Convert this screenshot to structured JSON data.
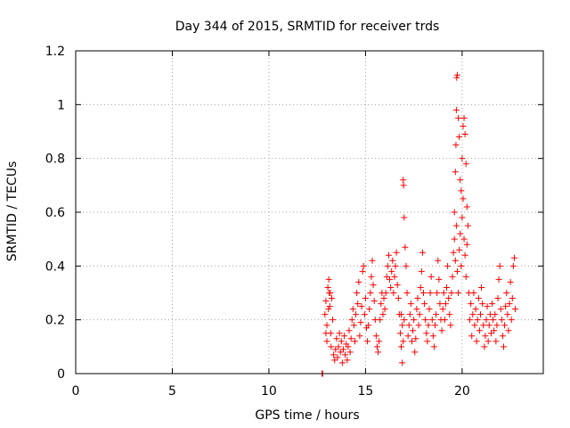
{
  "chart_data": {
    "type": "scatter",
    "title": "Day 344 of 2015, SRMTID for receiver trds",
    "xlabel": "GPS time / hours",
    "ylabel": "SRMTID / TECUs",
    "xlim": [
      0,
      24.2
    ],
    "ylim": [
      0,
      1.2
    ],
    "x_ticks": [
      0,
      5,
      10,
      15,
      20
    ],
    "x_tick_labels": [
      "0",
      "5",
      "10",
      "15",
      "20"
    ],
    "y_ticks": [
      0,
      0.2,
      0.4,
      0.6,
      0.8,
      1.0,
      1.2
    ],
    "y_tick_labels": [
      "0",
      "0.2",
      "0.4",
      "0.6",
      "0.8",
      "1",
      "1.2"
    ],
    "grid": true,
    "marker": "plus",
    "color": "#ff0000",
    "series": [
      {
        "name": "SRMTID",
        "points": [
          [
            12.75,
            0.0
          ],
          [
            12.75,
            0.0
          ],
          [
            12.78,
            0.0
          ],
          [
            12.9,
            0.22
          ],
          [
            12.95,
            0.27
          ],
          [
            13.0,
            0.18
          ],
          [
            13.05,
            0.32
          ],
          [
            13.1,
            0.35
          ],
          [
            13.12,
            0.3
          ],
          [
            13.15,
            0.25
          ],
          [
            13.2,
            0.15
          ],
          [
            13.22,
            0.1
          ],
          [
            13.25,
            0.28
          ],
          [
            13.3,
            0.2
          ],
          [
            12.95,
            0.15
          ],
          [
            13.0,
            0.12
          ],
          [
            13.08,
            0.24
          ],
          [
            13.18,
            0.3
          ],
          [
            13.35,
            0.07
          ],
          [
            13.4,
            0.05
          ],
          [
            13.45,
            0.09
          ],
          [
            13.5,
            0.13
          ],
          [
            13.55,
            0.06
          ],
          [
            13.6,
            0.1
          ],
          [
            13.65,
            0.15
          ],
          [
            13.7,
            0.08
          ],
          [
            13.75,
            0.12
          ],
          [
            13.8,
            0.04
          ],
          [
            13.85,
            0.09
          ],
          [
            13.9,
            0.14
          ],
          [
            13.95,
            0.07
          ],
          [
            14.0,
            0.11
          ],
          [
            14.05,
            0.05
          ],
          [
            14.1,
            0.1
          ],
          [
            14.15,
            0.16
          ],
          [
            14.2,
            0.08
          ],
          [
            14.25,
            0.13
          ],
          [
            14.3,
            0.2
          ],
          [
            14.35,
            0.24
          ],
          [
            14.4,
            0.18
          ],
          [
            14.45,
            0.12
          ],
          [
            14.5,
            0.22
          ],
          [
            14.55,
            0.3
          ],
          [
            14.6,
            0.26
          ],
          [
            14.65,
            0.34
          ],
          [
            14.7,
            0.14
          ],
          [
            14.75,
            0.19
          ],
          [
            14.8,
            0.25
          ],
          [
            14.85,
            0.38
          ],
          [
            14.9,
            0.4
          ],
          [
            14.95,
            0.22
          ],
          [
            15.0,
            0.28
          ],
          [
            15.05,
            0.17
          ],
          [
            15.1,
            0.12
          ],
          [
            15.15,
            0.18
          ],
          [
            15.2,
            0.24
          ],
          [
            15.25,
            0.3
          ],
          [
            15.3,
            0.36
          ],
          [
            15.35,
            0.42
          ],
          [
            15.4,
            0.33
          ],
          [
            15.45,
            0.27
          ],
          [
            15.5,
            0.2
          ],
          [
            15.55,
            0.14
          ],
          [
            15.6,
            0.1
          ],
          [
            15.65,
            0.08
          ],
          [
            15.7,
            0.12
          ],
          [
            15.75,
            0.2
          ],
          [
            15.8,
            0.26
          ],
          [
            15.85,
            0.3
          ],
          [
            15.9,
            0.22
          ],
          [
            15.95,
            0.28
          ],
          [
            16.0,
            0.24
          ],
          [
            16.05,
            0.3
          ],
          [
            16.1,
            0.36
          ],
          [
            16.15,
            0.4
          ],
          [
            16.2,
            0.44
          ],
          [
            16.25,
            0.35
          ],
          [
            16.3,
            0.32
          ],
          [
            16.35,
            0.38
          ],
          [
            16.4,
            0.42
          ],
          [
            16.45,
            0.3
          ],
          [
            16.5,
            0.36
          ],
          [
            16.55,
            0.4
          ],
          [
            16.6,
            0.45
          ],
          [
            16.65,
            0.33
          ],
          [
            16.7,
            0.28
          ],
          [
            16.75,
            0.22
          ],
          [
            16.8,
            0.15
          ],
          [
            16.85,
            0.1
          ],
          [
            16.9,
            0.04
          ],
          [
            16.95,
            0.72
          ],
          [
            16.97,
            0.7
          ],
          [
            17.0,
            0.58
          ],
          [
            17.05,
            0.47
          ],
          [
            17.1,
            0.4
          ],
          [
            17.15,
            0.3
          ],
          [
            16.85,
            0.22
          ],
          [
            16.9,
            0.18
          ],
          [
            16.95,
            0.12
          ],
          [
            17.0,
            0.2
          ],
          [
            17.2,
            0.14
          ],
          [
            17.25,
            0.18
          ],
          [
            17.3,
            0.22
          ],
          [
            17.35,
            0.26
          ],
          [
            17.4,
            0.12
          ],
          [
            17.45,
            0.16
          ],
          [
            17.5,
            0.2
          ],
          [
            17.55,
            0.08
          ],
          [
            17.6,
            0.13
          ],
          [
            17.65,
            0.24
          ],
          [
            17.7,
            0.28
          ],
          [
            17.75,
            0.18
          ],
          [
            17.8,
            0.22
          ],
          [
            17.85,
            0.32
          ],
          [
            17.9,
            0.38
          ],
          [
            17.95,
            0.45
          ],
          [
            18.0,
            0.3
          ],
          [
            18.05,
            0.26
          ],
          [
            18.1,
            0.2
          ],
          [
            18.15,
            0.15
          ],
          [
            18.2,
            0.12
          ],
          [
            18.25,
            0.18
          ],
          [
            18.3,
            0.24
          ],
          [
            18.35,
            0.3
          ],
          [
            18.4,
            0.36
          ],
          [
            18.45,
            0.2
          ],
          [
            18.5,
            0.14
          ],
          [
            18.55,
            0.1
          ],
          [
            18.6,
            0.18
          ],
          [
            18.65,
            0.22
          ],
          [
            18.7,
            0.3
          ],
          [
            18.75,
            0.42
          ],
          [
            18.8,
            0.35
          ],
          [
            18.85,
            0.26
          ],
          [
            18.9,
            0.2
          ],
          [
            18.95,
            0.16
          ],
          [
            19.0,
            0.24
          ],
          [
            19.05,
            0.3
          ],
          [
            19.1,
            0.2
          ],
          [
            19.15,
            0.26
          ],
          [
            19.2,
            0.32
          ],
          [
            19.25,
            0.4
          ],
          [
            19.3,
            0.28
          ],
          [
            19.35,
            0.22
          ],
          [
            19.4,
            0.18
          ],
          [
            19.45,
            0.3
          ],
          [
            19.5,
            0.36
          ],
          [
            19.55,
            0.45
          ],
          [
            19.6,
            0.6
          ],
          [
            19.65,
            0.75
          ],
          [
            19.68,
            0.85
          ],
          [
            19.7,
            0.98
          ],
          [
            19.72,
            1.1
          ],
          [
            19.75,
            1.11
          ],
          [
            19.8,
            0.95
          ],
          [
            19.85,
            0.88
          ],
          [
            19.9,
            0.72
          ],
          [
            19.95,
            0.68
          ],
          [
            20.0,
            0.8
          ],
          [
            20.05,
            0.92
          ],
          [
            20.1,
            0.95
          ],
          [
            20.15,
            0.89
          ],
          [
            20.2,
            0.78
          ],
          [
            20.25,
            0.62
          ],
          [
            19.6,
            0.5
          ],
          [
            19.65,
            0.42
          ],
          [
            19.7,
            0.55
          ],
          [
            19.75,
            0.38
          ],
          [
            19.8,
            0.3
          ],
          [
            19.85,
            0.46
          ],
          [
            19.9,
            0.52
          ],
          [
            19.95,
            0.4
          ],
          [
            20.0,
            0.58
          ],
          [
            20.05,
            0.65
          ],
          [
            20.1,
            0.5
          ],
          [
            20.15,
            0.44
          ],
          [
            20.2,
            0.36
          ],
          [
            20.25,
            0.48
          ],
          [
            20.3,
            0.55
          ],
          [
            20.35,
            0.3
          ],
          [
            20.4,
            0.2
          ],
          [
            20.45,
            0.26
          ],
          [
            20.5,
            0.14
          ],
          [
            20.55,
            0.22
          ],
          [
            20.6,
            0.3
          ],
          [
            20.65,
            0.18
          ],
          [
            20.7,
            0.24
          ],
          [
            20.75,
            0.12
          ],
          [
            20.8,
            0.2
          ],
          [
            20.85,
            0.28
          ],
          [
            20.9,
            0.16
          ],
          [
            20.95,
            0.22
          ],
          [
            21.0,
            0.32
          ],
          [
            21.05,
            0.26
          ],
          [
            21.1,
            0.18
          ],
          [
            21.15,
            0.1
          ],
          [
            21.2,
            0.14
          ],
          [
            21.25,
            0.2
          ],
          [
            21.3,
            0.25
          ],
          [
            21.35,
            0.12
          ],
          [
            21.4,
            0.18
          ],
          [
            21.45,
            0.22
          ],
          [
            21.5,
            0.15
          ],
          [
            21.55,
            0.26
          ],
          [
            21.6,
            0.2
          ],
          [
            21.65,
            0.16
          ],
          [
            21.7,
            0.22
          ],
          [
            21.75,
            0.12
          ],
          [
            21.8,
            0.18
          ],
          [
            21.85,
            0.28
          ],
          [
            21.9,
            0.35
          ],
          [
            21.95,
            0.4
          ],
          [
            22.0,
            0.24
          ],
          [
            22.05,
            0.2
          ],
          [
            22.1,
            0.14
          ],
          [
            22.15,
            0.1
          ],
          [
            22.2,
            0.18
          ],
          [
            22.25,
            0.25
          ],
          [
            22.3,
            0.3
          ],
          [
            22.35,
            0.22
          ],
          [
            22.4,
            0.16
          ],
          [
            22.45,
            0.26
          ],
          [
            22.5,
            0.34
          ],
          [
            22.55,
            0.2
          ],
          [
            22.6,
            0.28
          ],
          [
            22.65,
            0.4
          ],
          [
            22.7,
            0.43
          ],
          [
            22.75,
            0.24
          ]
        ]
      }
    ]
  }
}
